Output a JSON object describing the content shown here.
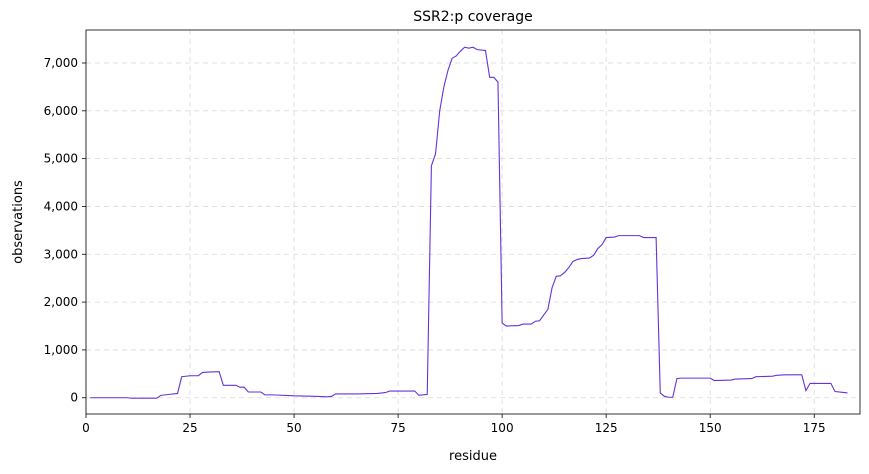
{
  "chart_data": {
    "type": "line",
    "title": "SSR2:p coverage",
    "x_label": "residue",
    "y_label": "observations",
    "color": "#6633d6",
    "grid": true,
    "xlim": [
      0,
      186
    ],
    "ylim": [
      -340,
      7690
    ],
    "xticks": [
      0,
      25,
      50,
      75,
      100,
      125,
      150,
      175
    ],
    "yticks": [
      0,
      {
        "value": 1000,
        "label": "1,000"
      },
      {
        "value": 2000,
        "label": "2,000"
      },
      {
        "value": 3000,
        "label": "3,000"
      },
      {
        "value": 4000,
        "label": "4,000"
      },
      {
        "value": 5000,
        "label": "5,000"
      },
      {
        "value": 6000,
        "label": "6,000"
      },
      {
        "value": 7000,
        "label": "7,000"
      }
    ],
    "x": [
      1,
      10,
      11,
      17,
      18,
      20,
      22,
      23,
      25,
      27,
      28,
      30,
      32,
      33,
      36,
      37,
      38,
      39,
      42,
      43,
      45,
      50,
      55,
      58,
      59,
      60,
      65,
      70,
      72,
      73,
      79,
      80,
      82,
      83,
      84,
      85,
      86,
      87,
      88,
      89,
      90,
      91,
      92,
      93,
      94,
      96,
      97,
      98,
      99,
      100,
      101,
      104,
      105,
      107,
      108,
      109,
      111,
      112,
      113,
      114,
      115,
      116,
      117,
      118,
      119,
      121,
      122,
      123,
      124,
      125,
      127,
      128,
      133,
      134,
      137,
      138,
      139,
      140,
      141,
      142,
      143,
      150,
      151,
      155,
      156,
      160,
      161,
      165,
      166,
      168,
      172,
      173,
      174,
      179,
      180,
      182,
      183
    ],
    "values": [
      0,
      0,
      -10,
      -10,
      50,
      70,
      90,
      440,
      460,
      460,
      530,
      540,
      545,
      260,
      260,
      220,
      220,
      120,
      120,
      60,
      60,
      40,
      30,
      20,
      30,
      80,
      80,
      90,
      110,
      140,
      140,
      50,
      70,
      4850,
      5100,
      6000,
      6500,
      6850,
      7100,
      7150,
      7250,
      7330,
      7310,
      7330,
      7280,
      7260,
      6700,
      6700,
      6600,
      1560,
      1500,
      1510,
      1540,
      1540,
      1600,
      1610,
      1850,
      2300,
      2540,
      2550,
      2620,
      2720,
      2850,
      2890,
      2910,
      2920,
      2980,
      3120,
      3200,
      3350,
      3360,
      3390,
      3390,
      3350,
      3350,
      100,
      30,
      10,
      10,
      400,
      410,
      410,
      360,
      370,
      390,
      400,
      440,
      450,
      470,
      480,
      480,
      150,
      300,
      300,
      130,
      110,
      100
    ]
  }
}
